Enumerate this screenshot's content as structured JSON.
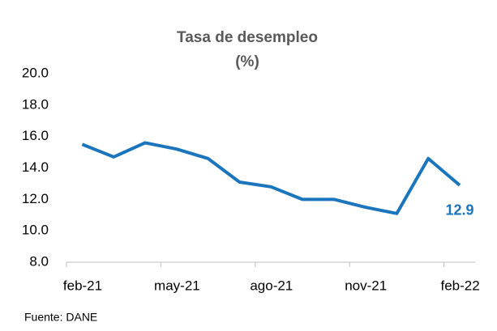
{
  "chart_data": {
    "type": "line",
    "title": "Tasa de desempleo",
    "subtitle": "(%)",
    "categories": [
      "feb-21",
      null,
      null,
      "may-21",
      null,
      null,
      "ago-21",
      null,
      null,
      "nov-21",
      null,
      null,
      "feb-22"
    ],
    "series": [
      {
        "name": "Tasa de desempleo",
        "color": "#1b75bc",
        "values": [
          15.5,
          14.7,
          15.6,
          15.2,
          14.6,
          13.1,
          12.8,
          12.0,
          12.0,
          11.5,
          11.1,
          14.6,
          12.9
        ]
      }
    ],
    "annotation": {
      "index": 12,
      "label": "12.9"
    },
    "ylim": [
      8,
      20
    ],
    "yticks": [
      {
        "value": 8,
        "label": "8.0"
      },
      {
        "value": 10,
        "label": "10.0"
      },
      {
        "value": 12,
        "label": "12.0"
      },
      {
        "value": 14,
        "label": "14.0"
      },
      {
        "value": 16,
        "label": "16.0"
      },
      {
        "value": 18,
        "label": "18.0"
      },
      {
        "value": 20,
        "label": "20.0"
      }
    ],
    "grid": false,
    "source": "Fuente: DANE"
  }
}
